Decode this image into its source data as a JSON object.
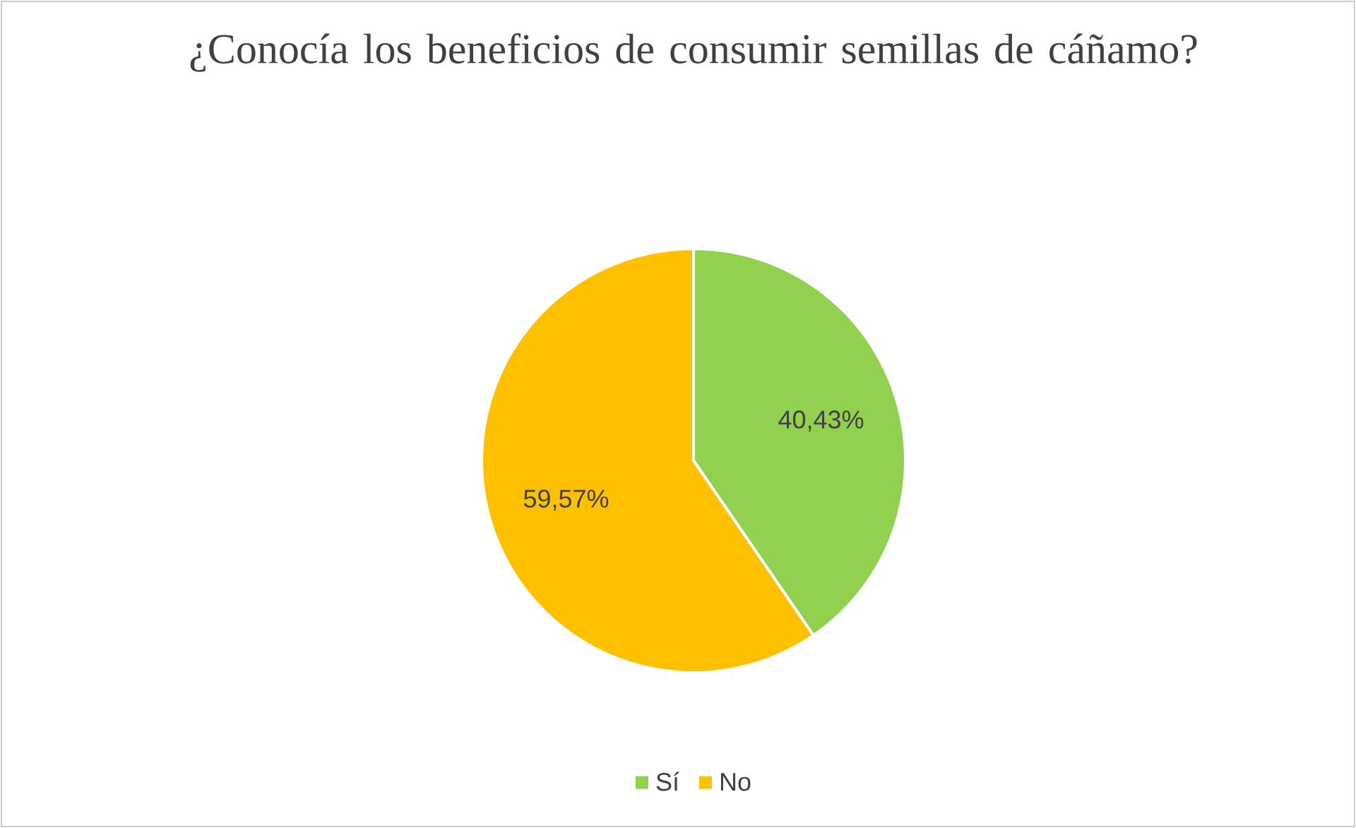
{
  "chart_data": {
    "type": "pie",
    "title": "¿Conocía los beneficios de consumir semillas de cáñamo?",
    "categories": [
      "Sí",
      "No"
    ],
    "values": [
      40.43,
      59.57
    ],
    "colors": [
      "#92d050",
      "#ffc000"
    ],
    "value_labels": [
      "40,43%",
      "59,57%"
    ],
    "legend": "bottom"
  }
}
